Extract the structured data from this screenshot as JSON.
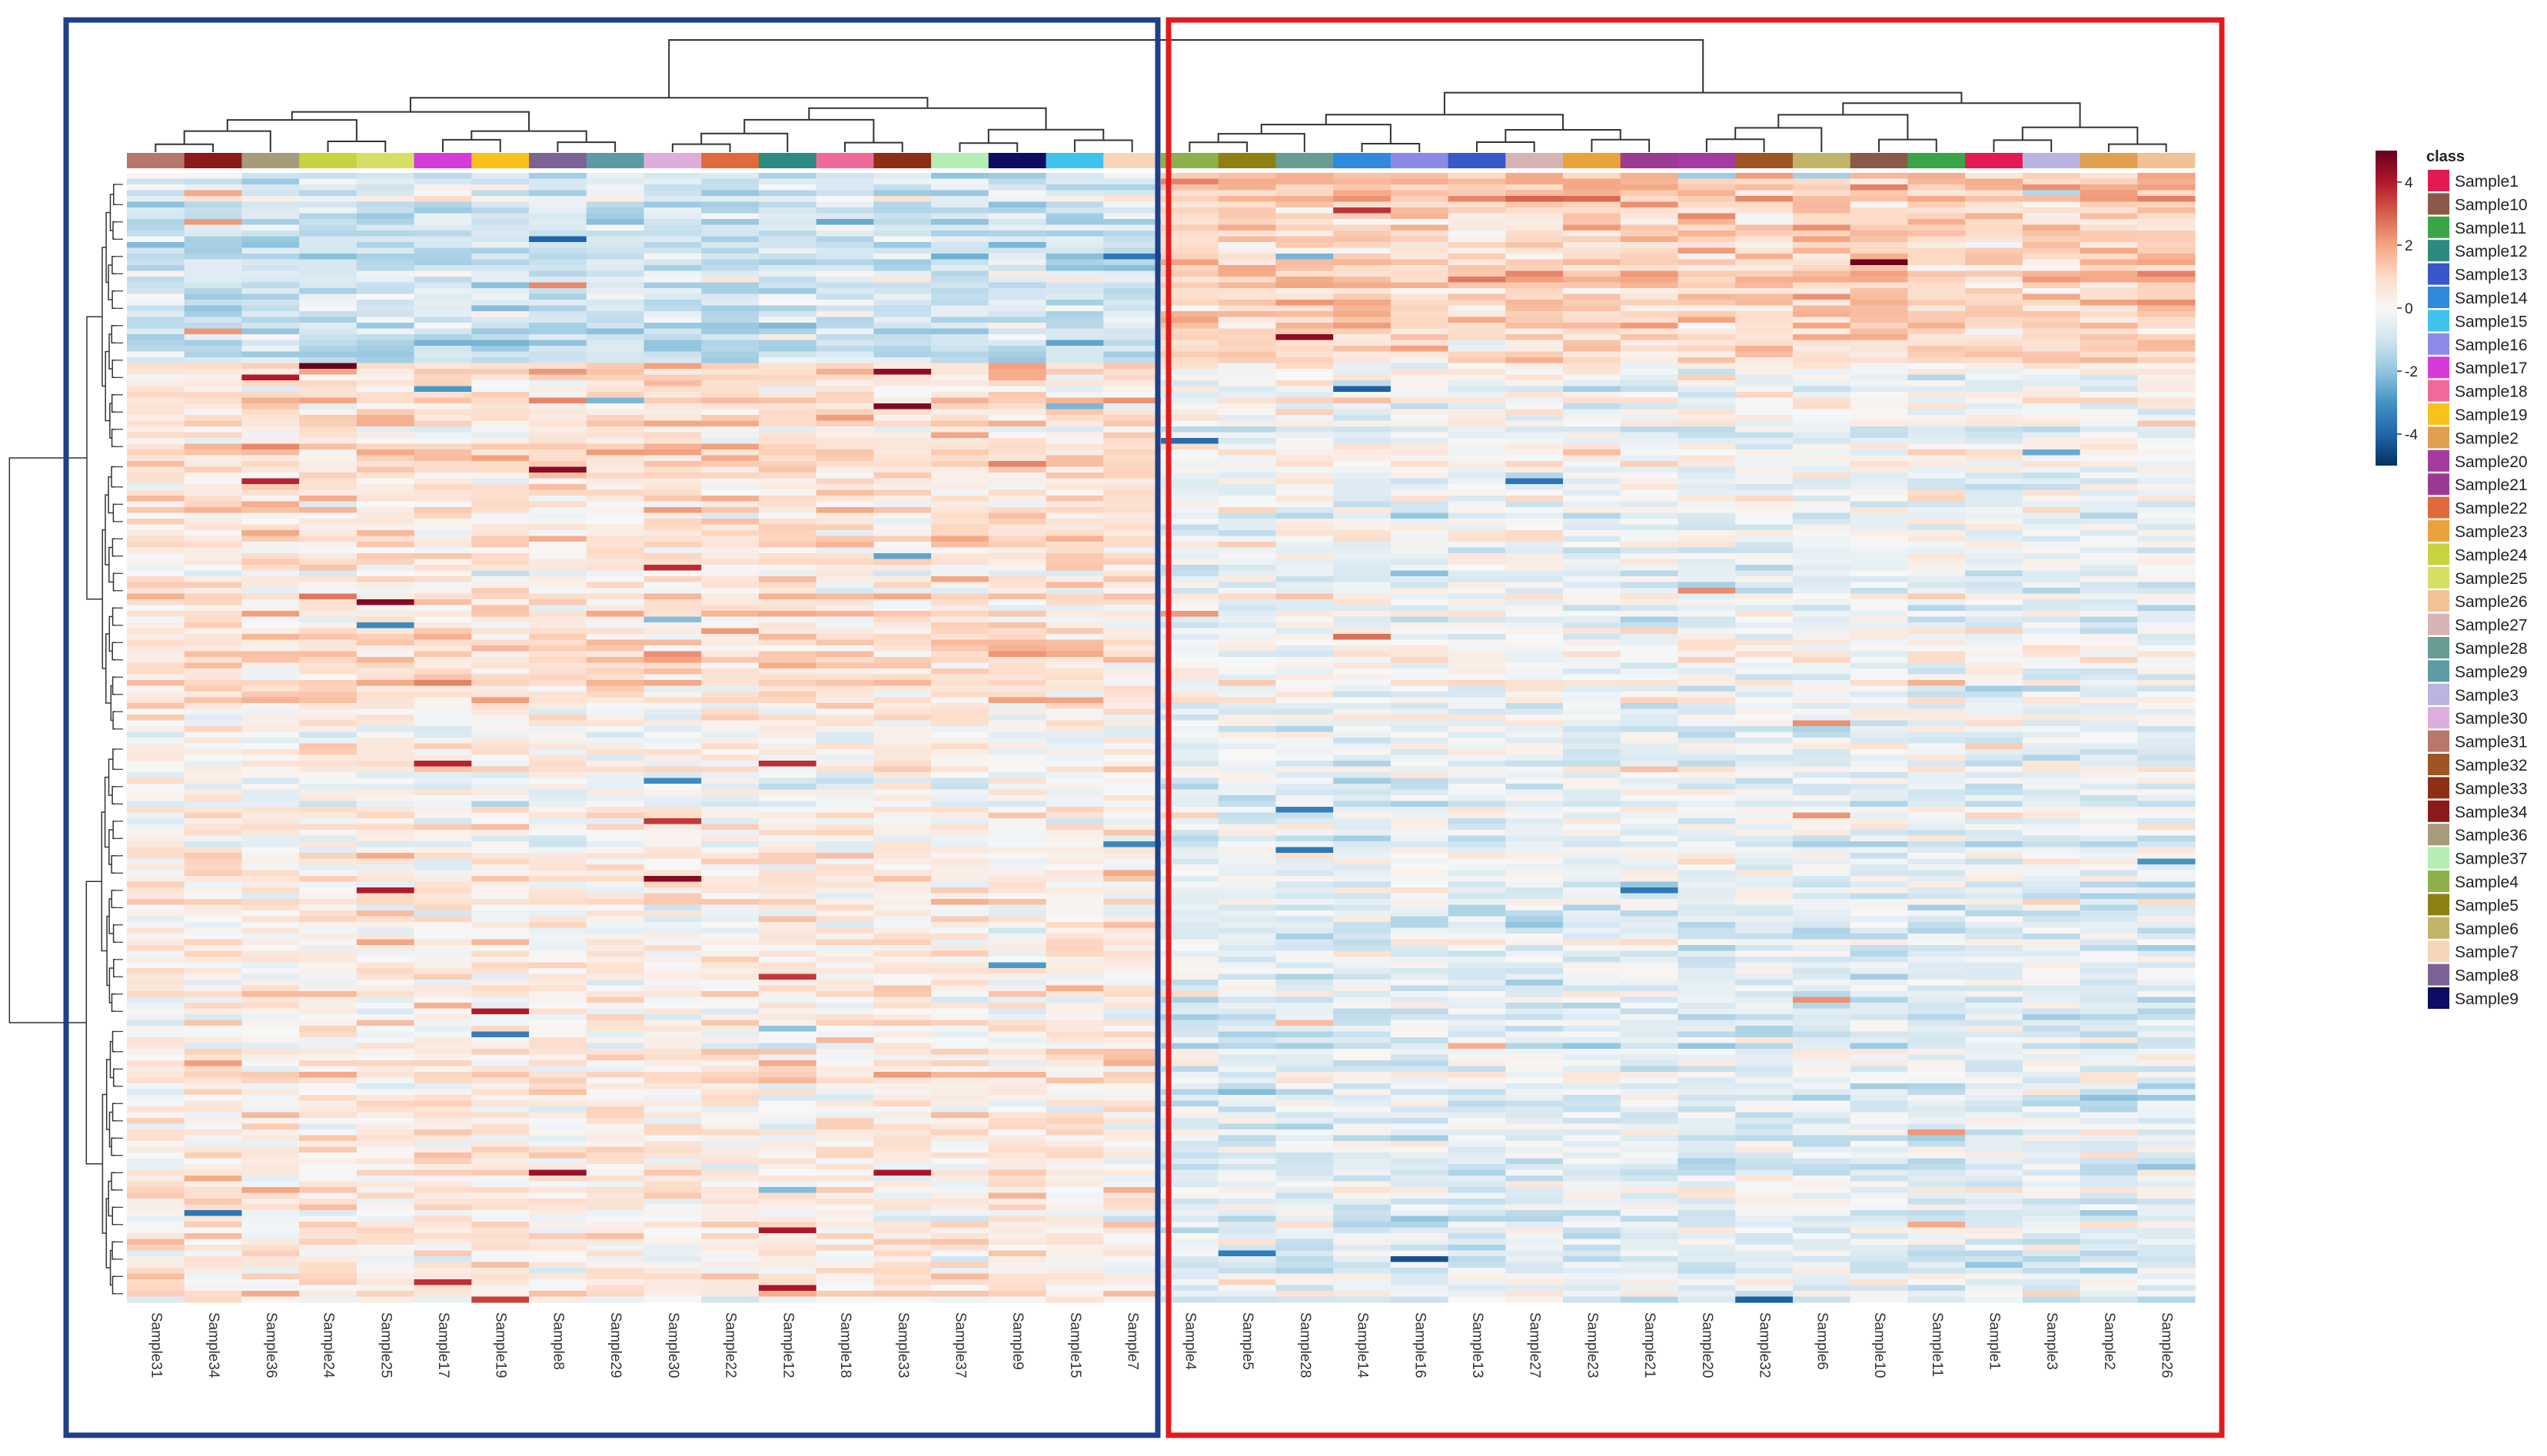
{
  "chart_data": {
    "type": "heatmap",
    "title": "",
    "legend_title": "class",
    "legend_placement": "right",
    "color_scale": {
      "ticks": [
        4,
        2,
        0,
        -2,
        -4
      ],
      "range": [
        -5,
        5
      ],
      "stops": [
        "#053061",
        "#2166ac",
        "#4393c3",
        "#92c5de",
        "#d1e5f0",
        "#f7f7f7",
        "#fddbc7",
        "#f4a582",
        "#d6604d",
        "#b2182b",
        "#67001f"
      ]
    },
    "columns": [
      "Sample31",
      "Sample34",
      "Sample36",
      "Sample24",
      "Sample25",
      "Sample17",
      "Sample19",
      "Sample8",
      "Sample29",
      "Sample30",
      "Sample22",
      "Sample12",
      "Sample18",
      "Sample33",
      "Sample37",
      "Sample9",
      "Sample15",
      "Sample7",
      "Sample4",
      "Sample5",
      "Sample28",
      "Sample14",
      "Sample16",
      "Sample13",
      "Sample27",
      "Sample23",
      "Sample21",
      "Sample20",
      "Sample32",
      "Sample6",
      "Sample10",
      "Sample11",
      "Sample1",
      "Sample3",
      "Sample2",
      "Sample26"
    ],
    "clusters": [
      {
        "name": "cluster-left",
        "color": "#1f3f86",
        "columns_from": 0,
        "columns_to": 17
      },
      {
        "name": "cluster-right",
        "color": "#e31a1c",
        "columns_from": 18,
        "columns_to": 35
      }
    ],
    "n_rows": 196,
    "feature_blocks": [
      {
        "rows": 33,
        "left_mean": -0.9,
        "right_mean": 1.2
      },
      {
        "rows": 60,
        "left_mean": 0.7,
        "right_mean": -0.2
      },
      {
        "rows": 28,
        "left_mean": 0.2,
        "right_mean": -0.3
      },
      {
        "rows": 75,
        "left_mean": 0.5,
        "right_mean": -0.45
      }
    ],
    "classes": [
      {
        "label": "Sample1",
        "color": "#e31a4f"
      },
      {
        "label": "Sample10",
        "color": "#8b5a46"
      },
      {
        "label": "Sample11",
        "color": "#3aa548"
      },
      {
        "label": "Sample12",
        "color": "#2c8a7e"
      },
      {
        "label": "Sample13",
        "color": "#3857c9"
      },
      {
        "label": "Sample14",
        "color": "#2f89dc"
      },
      {
        "label": "Sample15",
        "color": "#3ec3ef"
      },
      {
        "label": "Sample16",
        "color": "#8c8ae8"
      },
      {
        "label": "Sample17",
        "color": "#d63ad9"
      },
      {
        "label": "Sample18",
        "color": "#ef6a9a"
      },
      {
        "label": "Sample19",
        "color": "#f7c21c"
      },
      {
        "label": "Sample2",
        "color": "#e0a050"
      },
      {
        "label": "Sample20",
        "color": "#a53ba1"
      },
      {
        "label": "Sample21",
        "color": "#9b3a94"
      },
      {
        "label": "Sample22",
        "color": "#e06a3c"
      },
      {
        "label": "Sample23",
        "color": "#eaa23b"
      },
      {
        "label": "Sample24",
        "color": "#c9d23f"
      },
      {
        "label": "Sample25",
        "color": "#d6df63"
      },
      {
        "label": "Sample26",
        "color": "#f2c296"
      },
      {
        "label": "Sample27",
        "color": "#d7b3b3"
      },
      {
        "label": "Sample28",
        "color": "#6a9c96"
      },
      {
        "label": "Sample29",
        "color": "#5d9ba2"
      },
      {
        "label": "Sample3",
        "color": "#b9b5e0"
      },
      {
        "label": "Sample30",
        "color": "#ddaedb"
      },
      {
        "label": "Sample31",
        "color": "#b7776a"
      },
      {
        "label": "Sample32",
        "color": "#9c5523"
      },
      {
        "label": "Sample33",
        "color": "#8e2e14"
      },
      {
        "label": "Sample34",
        "color": "#8b1a1a"
      },
      {
        "label": "Sample36",
        "color": "#a79c7a"
      },
      {
        "label": "Sample37",
        "color": "#b4eeb4"
      },
      {
        "label": "Sample4",
        "color": "#8db04a"
      },
      {
        "label": "Sample5",
        "color": "#8c8112"
      },
      {
        "label": "Sample6",
        "color": "#c2b469"
      },
      {
        "label": "Sample7",
        "color": "#f7d5b8"
      },
      {
        "label": "Sample8",
        "color": "#7c6395"
      },
      {
        "label": "Sample9",
        "color": "#0d0b63"
      }
    ]
  }
}
